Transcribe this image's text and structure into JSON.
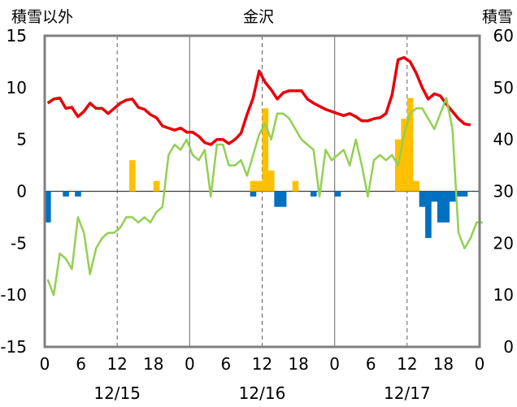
{
  "chart_data": {
    "type": "bar",
    "title": "金沢",
    "left_axis_label": "積雪以外",
    "right_axis_label": "積雪",
    "left_ylim": [
      -15,
      15
    ],
    "left_ticks": [
      "15",
      "10",
      "5",
      "0",
      "-5",
      "-10",
      "-15"
    ],
    "right_ylim": [
      0,
      60
    ],
    "right_ticks": [
      "60",
      "50",
      "40",
      "30",
      "20",
      "10",
      "0"
    ],
    "x_tick_labels": [
      "0",
      "6",
      "12",
      "18",
      "0",
      "6",
      "12",
      "18",
      "0",
      "6",
      "12",
      "18",
      "0"
    ],
    "date_labels": [
      "12/15",
      "12/16",
      "12/17"
    ],
    "colors": {
      "red_line": "#e8000b",
      "green_line": "#92d050",
      "yellow_bars": "#ffc000",
      "blue_bars": "#0070c0",
      "purple_line": "#7030a0",
      "frame": "#808080"
    },
    "series": [
      {
        "axis": "left",
        "type": "line",
        "color_key": "red_line",
        "values": [
          8.5,
          8.9,
          9.0,
          8.0,
          8.1,
          7.2,
          7.7,
          8.5,
          8.0,
          8.0,
          7.5,
          8.0,
          8.5,
          8.8,
          8.9,
          8.1,
          7.9,
          7.4,
          7.1,
          6.3,
          6.1,
          5.9,
          6.1,
          5.7,
          5.7,
          5.3,
          4.7,
          4.5,
          5.0,
          5.0,
          4.6,
          5.0,
          5.6,
          7.4,
          9.0,
          11.6,
          10.5,
          9.8,
          8.9,
          9.5,
          9.7,
          9.7,
          9.7,
          8.9,
          8.5,
          8.2,
          7.9,
          7.7,
          7.5,
          7.3,
          7.5,
          7.2,
          6.8,
          6.8,
          7.0,
          7.1,
          7.5,
          9.3,
          12.7,
          12.9,
          12.5,
          11.4,
          10.0,
          8.9,
          9.4,
          9.2,
          8.4,
          7.7,
          7.0,
          6.5,
          6.4
        ]
      },
      {
        "axis": "right",
        "type": "line",
        "color_key": "green_line",
        "values": [
          13,
          10,
          18,
          17,
          15,
          25,
          22,
          14,
          19,
          21,
          22,
          22,
          23,
          25,
          25,
          24,
          25,
          24,
          26,
          27,
          37,
          39,
          38,
          40,
          37,
          36,
          38,
          29,
          39,
          39,
          35,
          35,
          36,
          33,
          37,
          41,
          43,
          40,
          45,
          45,
          44,
          42,
          40,
          39,
          38,
          29,
          38,
          36,
          37,
          38,
          35,
          40,
          35,
          29,
          36,
          37,
          36,
          37,
          35,
          41,
          45,
          46,
          46,
          44,
          42,
          45,
          48,
          42,
          22,
          19,
          21,
          24,
          24
        ]
      },
      {
        "axis": "left",
        "type": "bar",
        "color_key": "yellow_bars",
        "values": [
          0,
          0,
          0,
          0,
          0,
          0,
          0,
          0,
          0,
          0,
          0,
          0,
          0,
          0,
          3,
          0,
          0,
          0,
          1,
          0,
          0,
          0,
          0,
          0,
          0,
          0,
          0,
          0,
          0,
          0,
          0,
          0,
          0,
          0,
          1,
          1,
          8,
          2,
          0,
          0,
          0,
          1,
          0,
          0,
          0,
          0,
          0,
          0,
          0,
          0,
          0,
          0,
          0,
          0,
          0,
          0,
          0,
          0,
          5,
          7,
          9,
          1,
          0,
          0,
          0,
          0,
          0,
          0,
          0,
          0,
          0,
          0
        ]
      },
      {
        "axis": "left",
        "type": "bar",
        "color_key": "blue_bars",
        "values": [
          -3,
          0,
          0,
          -0.5,
          0,
          -0.5,
          0,
          0,
          0,
          0,
          0,
          0,
          0,
          0,
          0,
          0,
          0,
          0,
          0,
          0,
          0,
          0,
          0,
          0,
          0,
          0,
          0,
          0,
          0,
          0,
          0,
          0,
          0,
          0,
          -0.5,
          0,
          0,
          0,
          -1.5,
          -1.5,
          0,
          0,
          0,
          0,
          -0.5,
          0,
          0,
          0,
          -0.5,
          0,
          0,
          0,
          0,
          0,
          0,
          0,
          0,
          0,
          0,
          0,
          0,
          0,
          -1.5,
          -4.5,
          -1,
          -3,
          -3,
          -1,
          -0.5,
          -0.5,
          0,
          0
        ]
      },
      {
        "axis": "right",
        "type": "line",
        "color_key": "purple_line",
        "values": [
          0,
          0
        ]
      }
    ]
  }
}
